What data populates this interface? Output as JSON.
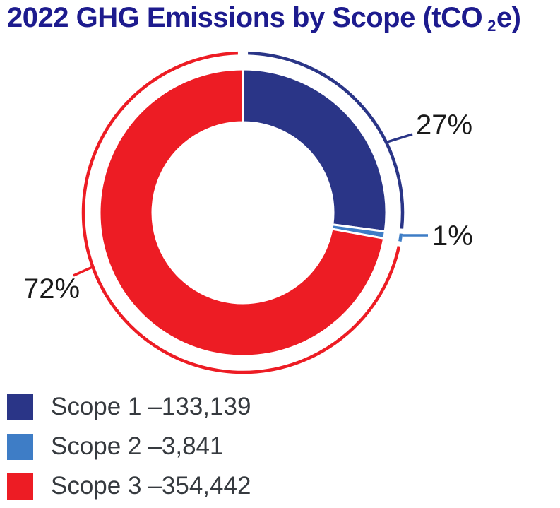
{
  "title": {
    "prefix": "2022 GHG Emissions by Scope (tCO",
    "subscript": "2",
    "suffix": "e)"
  },
  "colors": {
    "title": "#1d1b8e",
    "label_text": "#1a1a1a",
    "legend_text": "#363a3f",
    "background": "#ffffff",
    "scope1": "#2a3587",
    "scope2": "#3e7dc6",
    "scope3": "#ed1c24"
  },
  "chart_data": {
    "type": "pie",
    "subtype": "donut",
    "title": "2022 GHG Emissions by Scope (tCO2e)",
    "units": "tCO2e",
    "start_angle": "12 o'clock",
    "direction": "clockwise",
    "legend_position": "bottom-left",
    "grid": false,
    "slices": [
      {
        "name": "Scope 1",
        "value": 133139,
        "legend_value": "–133,139",
        "pct_label": "27%",
        "color": "#2a3587"
      },
      {
        "name": "Scope 2",
        "value": 3841,
        "legend_value": "–3,841",
        "pct_label": "1%",
        "color": "#3e7dc6"
      },
      {
        "name": "Scope 3",
        "value": 354442,
        "legend_value": "–354,442",
        "pct_label": "72%",
        "color": "#ed1c24"
      }
    ]
  }
}
